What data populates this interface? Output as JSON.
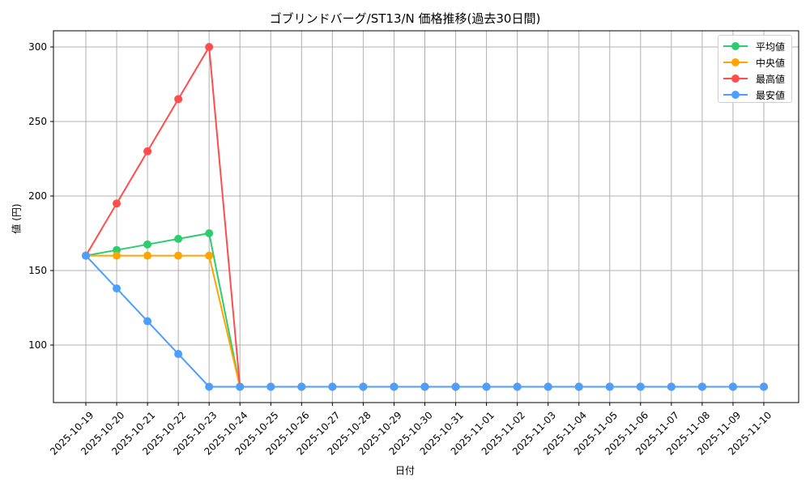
{
  "chart_data": {
    "type": "line",
    "title": "ゴブリンドバーグ/ST13/N 価格推移(過去30日間)",
    "xlabel": "日付",
    "ylabel": "値 (円)",
    "ylim": [
      62,
      311
    ],
    "yticks": [
      100,
      150,
      200,
      250,
      300
    ],
    "grid": true,
    "legend_position": "upper right",
    "categories": [
      "2025-10-19",
      "2025-10-20",
      "2025-10-21",
      "2025-10-22",
      "2025-10-23",
      "2025-10-24",
      "2025-10-25",
      "2025-10-26",
      "2025-10-27",
      "2025-10-28",
      "2025-10-29",
      "2025-10-30",
      "2025-10-31",
      "2025-11-01",
      "2025-11-02",
      "2025-11-03",
      "2025-11-04",
      "2025-11-05",
      "2025-11-06",
      "2025-11-07",
      "2025-11-08",
      "2025-11-09",
      "2025-11-10"
    ],
    "series": [
      {
        "name": "平均値",
        "color": "#2ecc71",
        "values": [
          160,
          163.75,
          167.5,
          171.25,
          175,
          72,
          72,
          72,
          72,
          72,
          72,
          72,
          72,
          72,
          72,
          72,
          72,
          72,
          72,
          72,
          72,
          72,
          72
        ]
      },
      {
        "name": "中央値",
        "color": "#ffa500",
        "values": [
          160,
          160,
          160,
          160,
          160,
          72,
          72,
          72,
          72,
          72,
          72,
          72,
          72,
          72,
          72,
          72,
          72,
          72,
          72,
          72,
          72,
          72,
          72
        ]
      },
      {
        "name": "最高値",
        "color": "#ff4d4d",
        "values": [
          160,
          195,
          230,
          265,
          300,
          72,
          72,
          72,
          72,
          72,
          72,
          72,
          72,
          72,
          72,
          72,
          72,
          72,
          72,
          72,
          72,
          72,
          72
        ]
      },
      {
        "name": "最安値",
        "color": "#4d9fff",
        "values": [
          160,
          138,
          116,
          94,
          72,
          72,
          72,
          72,
          72,
          72,
          72,
          72,
          72,
          72,
          72,
          72,
          72,
          72,
          72,
          72,
          72,
          72,
          72
        ]
      }
    ]
  }
}
